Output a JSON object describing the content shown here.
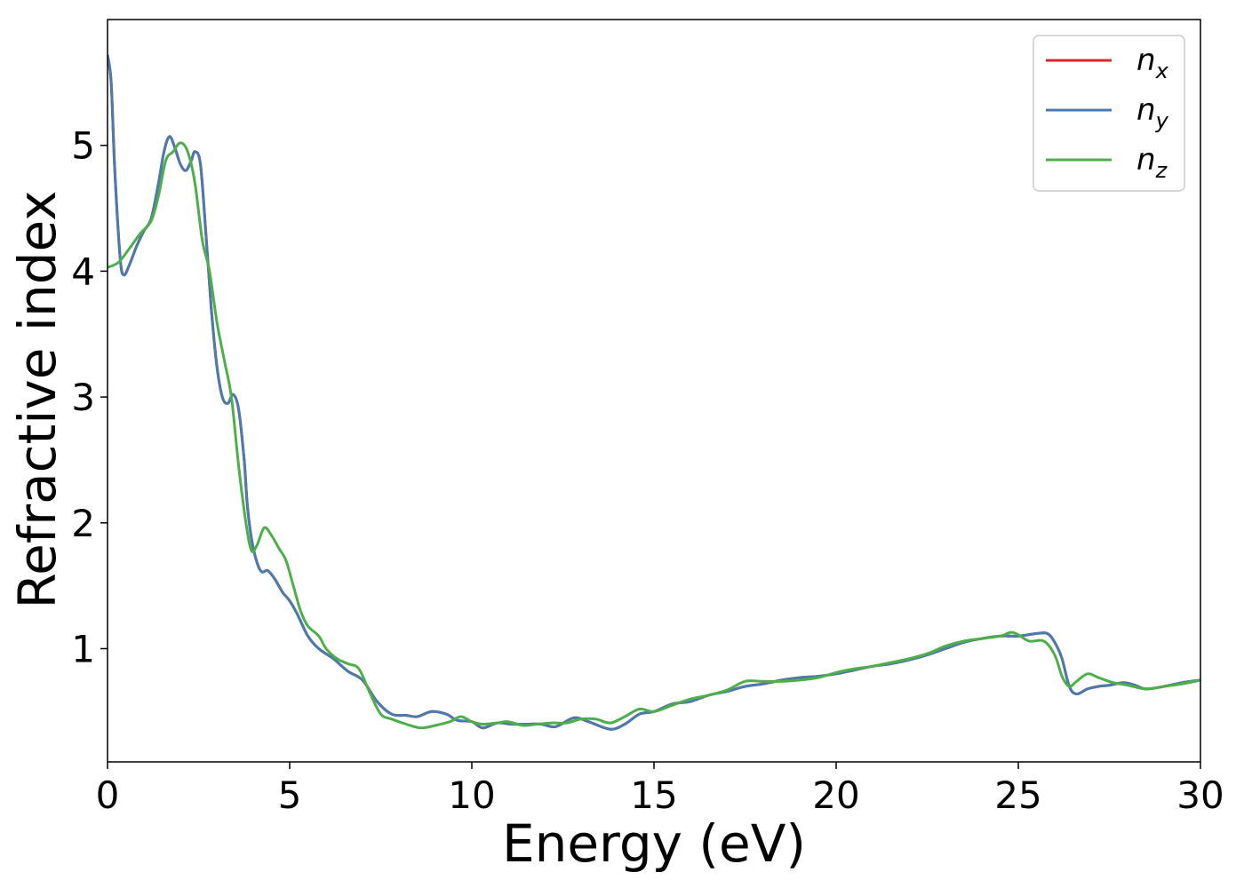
{
  "chart_data": {
    "type": "line",
    "xlabel": "Energy (eV)",
    "ylabel": "Refractive index",
    "xlim": [
      0,
      30
    ],
    "ylim": [
      0.1,
      6.0
    ],
    "xticks": [
      0,
      5,
      10,
      15,
      20,
      25,
      30
    ],
    "yticks": [
      1,
      2,
      3,
      4,
      5
    ],
    "grid": false,
    "legend_position": "top-right",
    "series": [
      {
        "name": "n",
        "subscript": "x",
        "color": "#d62728",
        "points": [
          [
            0,
            5.72
          ],
          [
            0.1,
            5.5
          ],
          [
            0.2,
            4.8
          ],
          [
            0.35,
            4.1
          ],
          [
            0.45,
            3.97
          ],
          [
            0.6,
            4.05
          ],
          [
            0.8,
            4.2
          ],
          [
            1.0,
            4.32
          ],
          [
            1.2,
            4.42
          ],
          [
            1.4,
            4.7
          ],
          [
            1.55,
            4.95
          ],
          [
            1.7,
            5.07
          ],
          [
            1.85,
            4.98
          ],
          [
            2.0,
            4.85
          ],
          [
            2.15,
            4.8
          ],
          [
            2.3,
            4.88
          ],
          [
            2.4,
            4.95
          ],
          [
            2.55,
            4.85
          ],
          [
            2.7,
            4.3
          ],
          [
            2.85,
            3.7
          ],
          [
            3.0,
            3.25
          ],
          [
            3.15,
            3.0
          ],
          [
            3.3,
            2.95
          ],
          [
            3.45,
            3.02
          ],
          [
            3.6,
            2.9
          ],
          [
            3.75,
            2.5
          ],
          [
            3.85,
            2.1
          ],
          [
            4.0,
            1.8
          ],
          [
            4.2,
            1.62
          ],
          [
            4.4,
            1.62
          ],
          [
            4.6,
            1.55
          ],
          [
            4.8,
            1.45
          ],
          [
            5.0,
            1.38
          ],
          [
            5.2,
            1.28
          ],
          [
            5.5,
            1.1
          ],
          [
            5.8,
            1.0
          ],
          [
            6.2,
            0.92
          ],
          [
            6.6,
            0.82
          ],
          [
            7.0,
            0.75
          ],
          [
            7.4,
            0.58
          ],
          [
            7.8,
            0.48
          ],
          [
            8.2,
            0.47
          ],
          [
            8.5,
            0.46
          ],
          [
            8.9,
            0.5
          ],
          [
            9.3,
            0.48
          ],
          [
            9.6,
            0.43
          ],
          [
            10.0,
            0.42
          ],
          [
            10.3,
            0.37
          ],
          [
            10.7,
            0.41
          ],
          [
            11.1,
            0.4
          ],
          [
            11.5,
            0.4
          ],
          [
            11.9,
            0.4
          ],
          [
            12.3,
            0.38
          ],
          [
            12.8,
            0.45
          ],
          [
            13.2,
            0.42
          ],
          [
            13.8,
            0.36
          ],
          [
            14.2,
            0.4
          ],
          [
            14.6,
            0.48
          ],
          [
            15.0,
            0.5
          ],
          [
            15.5,
            0.56
          ],
          [
            16.0,
            0.58
          ],
          [
            16.5,
            0.63
          ],
          [
            17.0,
            0.66
          ],
          [
            17.5,
            0.7
          ],
          [
            18.0,
            0.72
          ],
          [
            18.5,
            0.75
          ],
          [
            19.0,
            0.77
          ],
          [
            19.5,
            0.78
          ],
          [
            20.0,
            0.8
          ],
          [
            20.5,
            0.83
          ],
          [
            21.0,
            0.86
          ],
          [
            21.5,
            0.88
          ],
          [
            22.0,
            0.91
          ],
          [
            22.5,
            0.95
          ],
          [
            23.0,
            1.0
          ],
          [
            23.5,
            1.05
          ],
          [
            24.0,
            1.08
          ],
          [
            24.5,
            1.1
          ],
          [
            25.0,
            1.1
          ],
          [
            25.5,
            1.12
          ],
          [
            25.8,
            1.12
          ],
          [
            26.0,
            1.05
          ],
          [
            26.2,
            0.92
          ],
          [
            26.4,
            0.7
          ],
          [
            26.6,
            0.64
          ],
          [
            26.9,
            0.68
          ],
          [
            27.2,
            0.7
          ],
          [
            27.5,
            0.71
          ],
          [
            27.9,
            0.73
          ],
          [
            28.2,
            0.71
          ],
          [
            28.5,
            0.68
          ],
          [
            29.0,
            0.7
          ],
          [
            29.5,
            0.73
          ],
          [
            30.0,
            0.75
          ]
        ]
      },
      {
        "name": "n",
        "subscript": "y",
        "color": "#4a7bac",
        "points": [
          [
            0,
            5.72
          ],
          [
            0.1,
            5.5
          ],
          [
            0.2,
            4.8
          ],
          [
            0.35,
            4.1
          ],
          [
            0.45,
            3.97
          ],
          [
            0.6,
            4.05
          ],
          [
            0.8,
            4.2
          ],
          [
            1.0,
            4.32
          ],
          [
            1.2,
            4.42
          ],
          [
            1.4,
            4.7
          ],
          [
            1.55,
            4.95
          ],
          [
            1.7,
            5.07
          ],
          [
            1.85,
            4.98
          ],
          [
            2.0,
            4.85
          ],
          [
            2.15,
            4.8
          ],
          [
            2.3,
            4.88
          ],
          [
            2.4,
            4.95
          ],
          [
            2.55,
            4.85
          ],
          [
            2.7,
            4.3
          ],
          [
            2.85,
            3.7
          ],
          [
            3.0,
            3.25
          ],
          [
            3.15,
            3.0
          ],
          [
            3.3,
            2.95
          ],
          [
            3.45,
            3.02
          ],
          [
            3.6,
            2.9
          ],
          [
            3.75,
            2.5
          ],
          [
            3.85,
            2.1
          ],
          [
            4.0,
            1.8
          ],
          [
            4.2,
            1.62
          ],
          [
            4.4,
            1.62
          ],
          [
            4.6,
            1.55
          ],
          [
            4.8,
            1.45
          ],
          [
            5.0,
            1.38
          ],
          [
            5.2,
            1.28
          ],
          [
            5.5,
            1.1
          ],
          [
            5.8,
            1.0
          ],
          [
            6.2,
            0.92
          ],
          [
            6.6,
            0.82
          ],
          [
            7.0,
            0.75
          ],
          [
            7.4,
            0.58
          ],
          [
            7.8,
            0.48
          ],
          [
            8.2,
            0.47
          ],
          [
            8.5,
            0.46
          ],
          [
            8.9,
            0.5
          ],
          [
            9.3,
            0.48
          ],
          [
            9.6,
            0.43
          ],
          [
            10.0,
            0.42
          ],
          [
            10.3,
            0.37
          ],
          [
            10.7,
            0.41
          ],
          [
            11.1,
            0.4
          ],
          [
            11.5,
            0.4
          ],
          [
            11.9,
            0.4
          ],
          [
            12.3,
            0.38
          ],
          [
            12.8,
            0.45
          ],
          [
            13.2,
            0.42
          ],
          [
            13.8,
            0.36
          ],
          [
            14.2,
            0.4
          ],
          [
            14.6,
            0.48
          ],
          [
            15.0,
            0.5
          ],
          [
            15.5,
            0.56
          ],
          [
            16.0,
            0.58
          ],
          [
            16.5,
            0.63
          ],
          [
            17.0,
            0.66
          ],
          [
            17.5,
            0.7
          ],
          [
            18.0,
            0.72
          ],
          [
            18.5,
            0.75
          ],
          [
            19.0,
            0.77
          ],
          [
            19.5,
            0.78
          ],
          [
            20.0,
            0.8
          ],
          [
            20.5,
            0.83
          ],
          [
            21.0,
            0.86
          ],
          [
            21.5,
            0.88
          ],
          [
            22.0,
            0.91
          ],
          [
            22.5,
            0.95
          ],
          [
            23.0,
            1.0
          ],
          [
            23.5,
            1.05
          ],
          [
            24.0,
            1.08
          ],
          [
            24.5,
            1.1
          ],
          [
            25.0,
            1.1
          ],
          [
            25.5,
            1.12
          ],
          [
            25.8,
            1.12
          ],
          [
            26.0,
            1.05
          ],
          [
            26.2,
            0.92
          ],
          [
            26.4,
            0.7
          ],
          [
            26.6,
            0.64
          ],
          [
            26.9,
            0.68
          ],
          [
            27.2,
            0.7
          ],
          [
            27.5,
            0.71
          ],
          [
            27.9,
            0.73
          ],
          [
            28.2,
            0.71
          ],
          [
            28.5,
            0.68
          ],
          [
            29.0,
            0.7
          ],
          [
            29.5,
            0.73
          ],
          [
            30.0,
            0.75
          ]
        ]
      },
      {
        "name": "n",
        "subscript": "z",
        "color": "#4daf4a",
        "points": [
          [
            0,
            4.03
          ],
          [
            0.3,
            4.07
          ],
          [
            0.6,
            4.18
          ],
          [
            0.9,
            4.3
          ],
          [
            1.2,
            4.4
          ],
          [
            1.4,
            4.6
          ],
          [
            1.6,
            4.88
          ],
          [
            1.8,
            4.95
          ],
          [
            2.0,
            5.02
          ],
          [
            2.2,
            4.95
          ],
          [
            2.4,
            4.7
          ],
          [
            2.6,
            4.25
          ],
          [
            2.8,
            4.0
          ],
          [
            3.0,
            3.6
          ],
          [
            3.2,
            3.3
          ],
          [
            3.4,
            3.0
          ],
          [
            3.6,
            2.45
          ],
          [
            3.8,
            2.0
          ],
          [
            3.95,
            1.78
          ],
          [
            4.1,
            1.82
          ],
          [
            4.3,
            1.96
          ],
          [
            4.5,
            1.9
          ],
          [
            4.7,
            1.8
          ],
          [
            4.9,
            1.7
          ],
          [
            5.1,
            1.5
          ],
          [
            5.3,
            1.3
          ],
          [
            5.5,
            1.18
          ],
          [
            5.8,
            1.1
          ],
          [
            6.0,
            1.0
          ],
          [
            6.3,
            0.92
          ],
          [
            6.6,
            0.88
          ],
          [
            6.9,
            0.84
          ],
          [
            7.2,
            0.65
          ],
          [
            7.5,
            0.48
          ],
          [
            7.8,
            0.44
          ],
          [
            8.2,
            0.4
          ],
          [
            8.6,
            0.37
          ],
          [
            9.0,
            0.39
          ],
          [
            9.4,
            0.42
          ],
          [
            9.7,
            0.46
          ],
          [
            10.0,
            0.42
          ],
          [
            10.3,
            0.4
          ],
          [
            10.7,
            0.41
          ],
          [
            11.0,
            0.42
          ],
          [
            11.4,
            0.39
          ],
          [
            11.8,
            0.4
          ],
          [
            12.2,
            0.41
          ],
          [
            12.6,
            0.41
          ],
          [
            13.0,
            0.44
          ],
          [
            13.4,
            0.44
          ],
          [
            13.8,
            0.41
          ],
          [
            14.2,
            0.46
          ],
          [
            14.6,
            0.52
          ],
          [
            15.0,
            0.5
          ],
          [
            15.5,
            0.55
          ],
          [
            16.0,
            0.6
          ],
          [
            16.5,
            0.63
          ],
          [
            17.0,
            0.67
          ],
          [
            17.5,
            0.74
          ],
          [
            18.0,
            0.74
          ],
          [
            18.5,
            0.74
          ],
          [
            19.0,
            0.75
          ],
          [
            19.5,
            0.77
          ],
          [
            20.0,
            0.81
          ],
          [
            20.5,
            0.84
          ],
          [
            21.0,
            0.86
          ],
          [
            21.5,
            0.89
          ],
          [
            22.0,
            0.92
          ],
          [
            22.5,
            0.96
          ],
          [
            23.0,
            1.02
          ],
          [
            23.5,
            1.06
          ],
          [
            24.0,
            1.08
          ],
          [
            24.5,
            1.1
          ],
          [
            24.8,
            1.13
          ],
          [
            25.0,
            1.11
          ],
          [
            25.3,
            1.06
          ],
          [
            25.7,
            1.06
          ],
          [
            26.0,
            0.95
          ],
          [
            26.2,
            0.78
          ],
          [
            26.4,
            0.7
          ],
          [
            26.6,
            0.74
          ],
          [
            26.9,
            0.8
          ],
          [
            27.2,
            0.77
          ],
          [
            27.6,
            0.73
          ],
          [
            28.0,
            0.71
          ],
          [
            28.5,
            0.68
          ],
          [
            29.0,
            0.7
          ],
          [
            29.5,
            0.72
          ],
          [
            30.0,
            0.75
          ]
        ]
      }
    ]
  }
}
